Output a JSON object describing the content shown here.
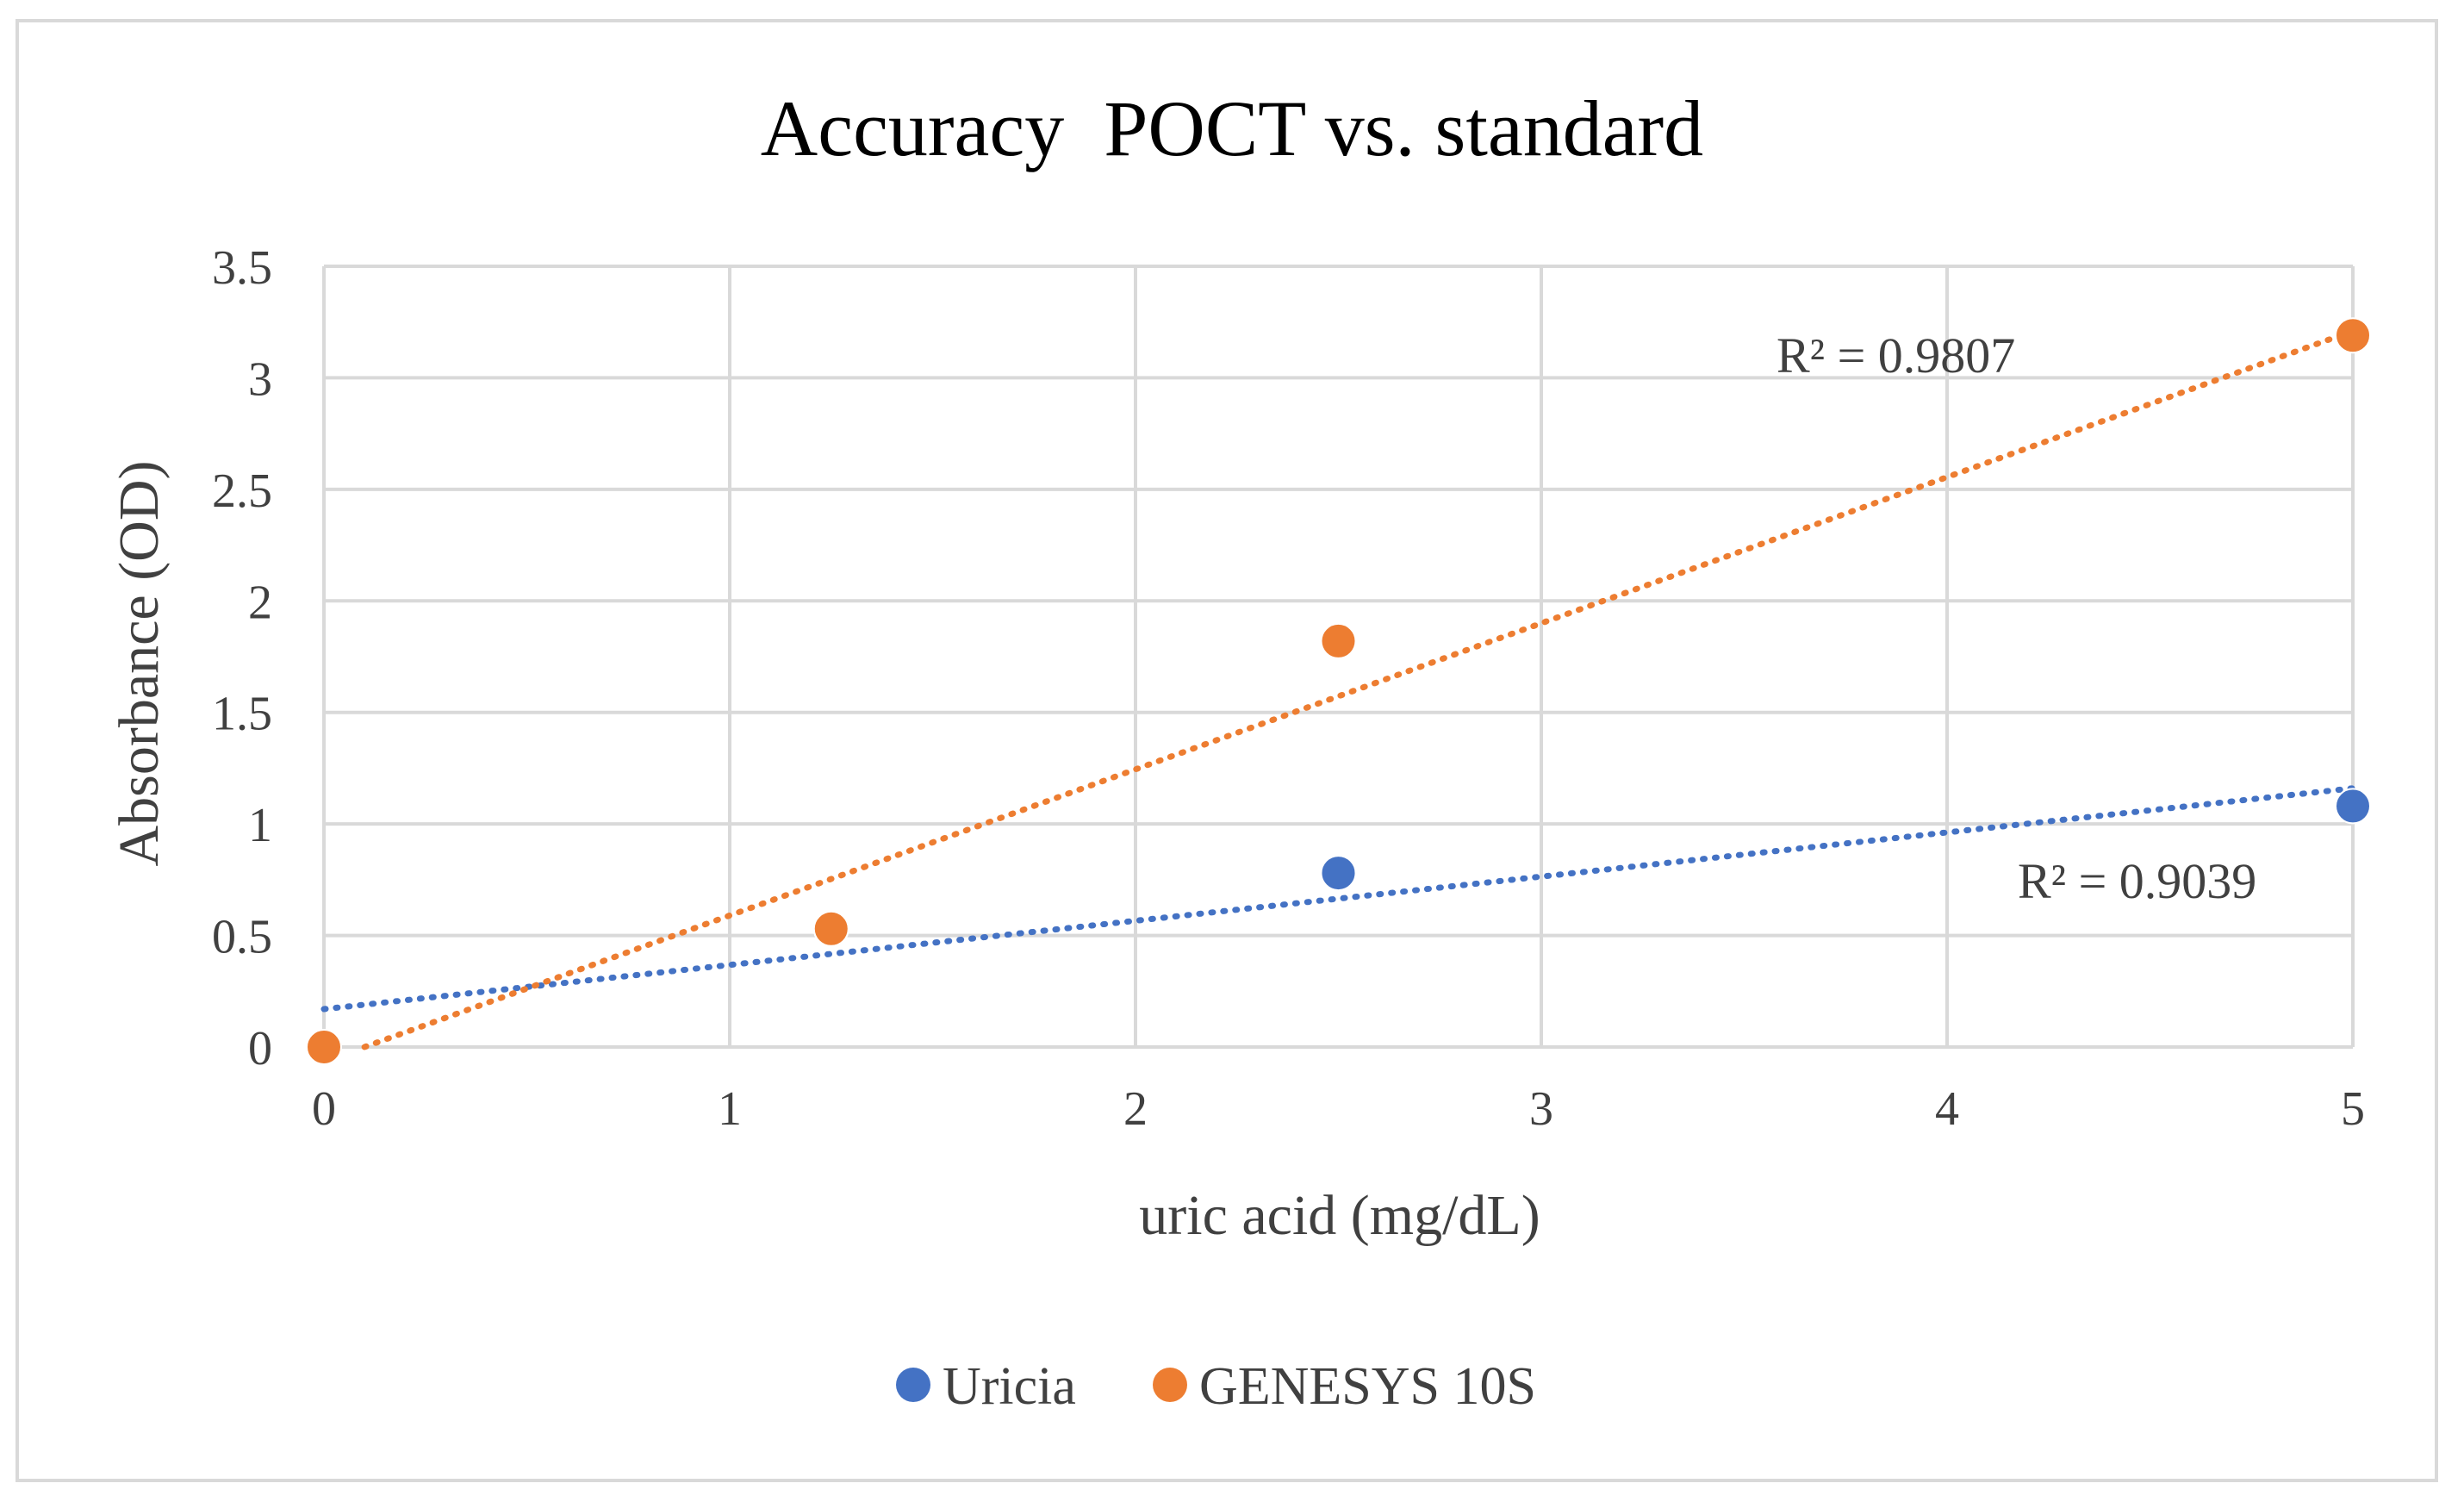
{
  "chart_data": {
    "type": "scatter",
    "title": "Accuracy  POCT vs. standard",
    "xlabel": "uric acid (mg/dL)",
    "ylabel": "Absorbance (OD)",
    "xlim": [
      0,
      5
    ],
    "ylim": [
      0,
      3.5
    ],
    "x_ticks": [
      0,
      1,
      2,
      3,
      4,
      5
    ],
    "y_ticks": [
      0,
      0.5,
      1,
      1.5,
      2,
      2.5,
      3,
      3.5
    ],
    "grid": true,
    "legend_position": "bottom",
    "series": [
      {
        "name": "Uricia",
        "color": "#4472c4",
        "x": [
          0,
          1.25,
          2.5,
          5
        ],
        "y": [
          0,
          0.53,
          0.78,
          1.08
        ],
        "trendline": {
          "type": "linear",
          "r2_label": "R² = 0.9039",
          "start": [
            0,
            0.17
          ],
          "end": [
            5,
            1.16
          ]
        }
      },
      {
        "name": "GENESYS 10S",
        "color": "#ed7d31",
        "x": [
          0,
          1.25,
          2.5,
          5
        ],
        "y": [
          0,
          0.53,
          1.82,
          3.19
        ],
        "trendline": {
          "type": "linear",
          "r2_label": "R² = 0.9807",
          "start": [
            0.1,
            0
          ],
          "end": [
            5,
            3.21
          ]
        }
      }
    ]
  }
}
